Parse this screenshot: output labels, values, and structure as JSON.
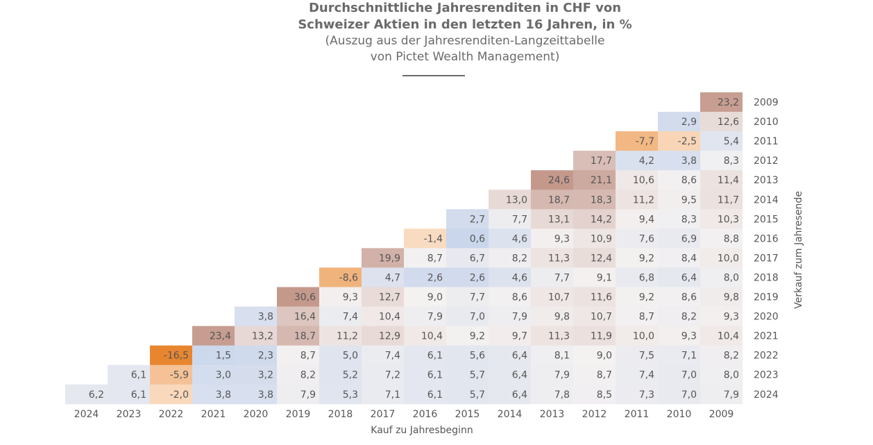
{
  "chart_data": {
    "type": "heatmap",
    "title_line1": "Durchschnittliche Jahresrenditen in CHF von",
    "title_line2": "Schweizer Aktien in den letzten 16 Jahren, in %",
    "subtitle_line1": "(Auszug aus der Jahresrenditen-Langzeittabelle",
    "subtitle_line2": "von Pictet Wealth Management)",
    "xlabel": "Kauf zu Jahresbeginn",
    "ylabel": "Verkauf zum Jahresende",
    "x_categories": [
      "2024",
      "2023",
      "2022",
      "2021",
      "2020",
      "2019",
      "2018",
      "2017",
      "2016",
      "2015",
      "2014",
      "2013",
      "2012",
      "2011",
      "2010",
      "2009"
    ],
    "y_categories": [
      "2009",
      "2010",
      "2011",
      "2012",
      "2013",
      "2014",
      "2015",
      "2016",
      "2017",
      "2018",
      "2019",
      "2020",
      "2021",
      "2022",
      "2023",
      "2024"
    ],
    "values_by_buy_year": {
      "2009": [
        "23,2",
        "12,6",
        "5,4",
        "8,3",
        "11,4",
        "11,7",
        "10,3",
        "8,8",
        "10,0",
        "8,0",
        "9,8",
        "9,3",
        "10,4",
        "8,2",
        "8,0",
        "7,9"
      ],
      "2010": [
        "2,9",
        "-2,5",
        "3,8",
        "8,6",
        "9,5",
        "8,3",
        "6,9",
        "8,4",
        "6,4",
        "8,6",
        "8,2",
        "9,3",
        "7,1",
        "7,0",
        "7,0"
      ],
      "2011": [
        "-7,7",
        "4,2",
        "10,6",
        "11,2",
        "9,4",
        "7,6",
        "9,2",
        "6,8",
        "9,2",
        "8,7",
        "10,0",
        "7,5",
        "7,4",
        "7,3"
      ],
      "2012": [
        "17,7",
        "21,1",
        "18,3",
        "14,2",
        "10,9",
        "12,4",
        "9,1",
        "11,6",
        "10,7",
        "11,9",
        "9,0",
        "8,7",
        "8,5"
      ],
      "2013": [
        "24,6",
        "18,7",
        "13,1",
        "9,3",
        "11,3",
        "7,7",
        "10,7",
        "9,8",
        "11,3",
        "8,1",
        "7,9",
        "7,8"
      ],
      "2014": [
        "13,0",
        "7,7",
        "4,6",
        "8,2",
        "4,6",
        "8,6",
        "7,9",
        "9,7",
        "6,4",
        "6,4",
        "6,4"
      ],
      "2015": [
        "2,7",
        "0,6",
        "6,7",
        "2,6",
        "7,7",
        "7,0",
        "9,2",
        "5,6",
        "5,7",
        "5,7"
      ],
      "2016": [
        "-1,4",
        "8,7",
        "2,6",
        "9,0",
        "7,9",
        "10,4",
        "6,1",
        "6,1",
        "6,1"
      ],
      "2017": [
        "19,9",
        "4,7",
        "12,7",
        "10,4",
        "12,9",
        "7,4",
        "7,2",
        "7,1"
      ],
      "2018": [
        "-8,6",
        "9,3",
        "7,4",
        "11,2",
        "5,0",
        "5,2",
        "5,3"
      ],
      "2019": [
        "30,6",
        "16,4",
        "18,7",
        "8,7",
        "8,2",
        "7,9"
      ],
      "2020": [
        "3,8",
        "13,2",
        "2,3",
        "3,2",
        "3,8"
      ],
      "2021": [
        "23,4",
        "1,5",
        "3,0",
        "3,8"
      ],
      "2022": [
        "-16,5",
        "-5,9",
        "-2,0"
      ],
      "2023": [
        "6,1",
        "6,1"
      ],
      "2024": [
        "6,2"
      ]
    },
    "color_scale": {
      "negative_strong": "#e8862f",
      "negative_light": "#fbe3cf",
      "low": "#c9d6ec",
      "mid": "#f4f1f1",
      "high": "#c4998c"
    },
    "grid": false,
    "legend": "none"
  }
}
